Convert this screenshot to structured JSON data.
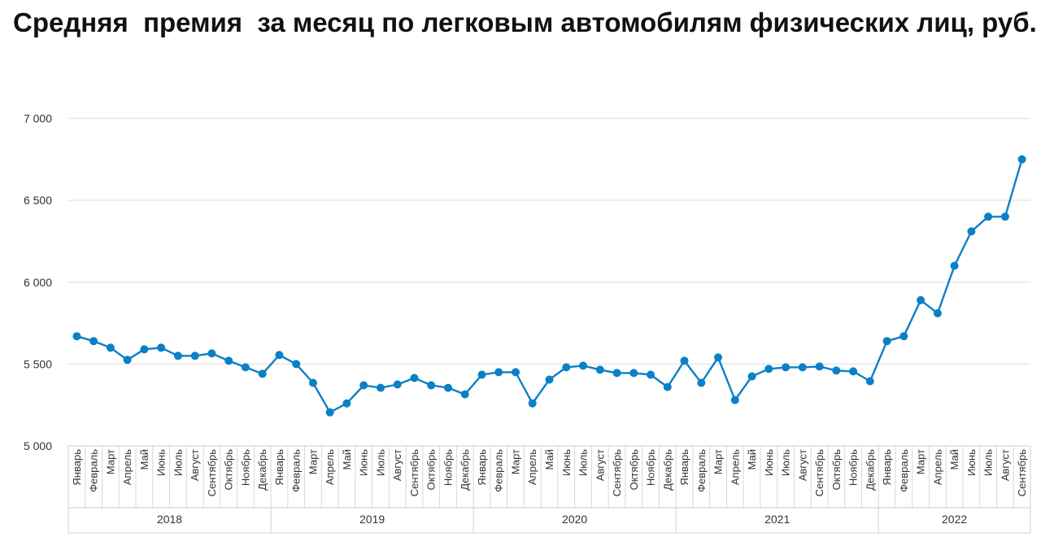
{
  "title": "Средняя  премия  за месяц по легковым автомобилям физических лиц, руб.",
  "colors": {
    "line": "#0a80c6",
    "grid": "#e3e3e3",
    "axis_border": "#cfd8e6",
    "text": "#333333"
  },
  "chart_data": {
    "type": "line",
    "title": "Средняя  премия  за месяц по легковым автомобилям физических лиц, руб.",
    "xlabel": "",
    "ylabel": "",
    "ylim": [
      5000,
      7000
    ],
    "yticks": [
      5000,
      5500,
      6000,
      6500,
      7000
    ],
    "ytick_labels": [
      "5 000",
      "5 500",
      "6 000",
      "6 500",
      "7 000"
    ],
    "grid": true,
    "legend": null,
    "years": [
      {
        "label": "2018",
        "months": 12
      },
      {
        "label": "2019",
        "months": 12
      },
      {
        "label": "2020",
        "months": 12
      },
      {
        "label": "2021",
        "months": 12
      },
      {
        "label": "2022",
        "months": 9
      }
    ],
    "month_names": [
      "Январь",
      "Февраль",
      "Март",
      "Апрель",
      "Май",
      "Июнь",
      "Июль",
      "Август",
      "Сентябрь",
      "Октябрь",
      "Ноябрь",
      "Декабрь"
    ],
    "x": [
      "Январь 2018",
      "Февраль 2018",
      "Март 2018",
      "Апрель 2018",
      "Май 2018",
      "Июнь 2018",
      "Июль 2018",
      "Август 2018",
      "Сентябрь 2018",
      "Октябрь 2018",
      "Ноябрь 2018",
      "Декабрь 2018",
      "Январь 2019",
      "Февраль 2019",
      "Март 2019",
      "Апрель 2019",
      "Май 2019",
      "Июнь 2019",
      "Июль 2019",
      "Август 2019",
      "Сентябрь 2019",
      "Октябрь 2019",
      "Ноябрь 2019",
      "Декабрь 2019",
      "Январь 2020",
      "Февраль 2020",
      "Март 2020",
      "Апрель 2020",
      "Май 2020",
      "Июнь 2020",
      "Июль 2020",
      "Август 2020",
      "Сентябрь 2020",
      "Октябрь 2020",
      "Ноябрь 2020",
      "Декабрь 2020",
      "Январь 2021",
      "Февраль 2021",
      "Март 2021",
      "Апрель 2021",
      "Май 2021",
      "Июнь 2021",
      "Июль 2021",
      "Август 2021",
      "Сентябрь 2021",
      "Октябрь 2021",
      "Ноябрь 2021",
      "Декабрь 2021",
      "Январь 2022",
      "Февраль 2022",
      "Март 2022",
      "Апрель 2022",
      "Май 2022",
      "Июнь 2022",
      "Июль 2022",
      "Август 2022",
      "Сентябрь 2022"
    ],
    "series": [
      {
        "name": "Средняя премия, руб.",
        "values": [
          5670,
          5640,
          5600,
          5525,
          5590,
          5600,
          5550,
          5550,
          5565,
          5520,
          5480,
          5440,
          5555,
          5500,
          5385,
          5205,
          5260,
          5370,
          5355,
          5375,
          5415,
          5370,
          5355,
          5315,
          5435,
          5450,
          5450,
          5260,
          5405,
          5480,
          5490,
          5465,
          5445,
          5445,
          5435,
          5360,
          5520,
          5385,
          5540,
          5280,
          5425,
          5470,
          5480,
          5480,
          5485,
          5460,
          5455,
          5395,
          5640,
          5670,
          5890,
          5810,
          6100,
          6310,
          6400,
          6400,
          6750
        ]
      }
    ]
  }
}
